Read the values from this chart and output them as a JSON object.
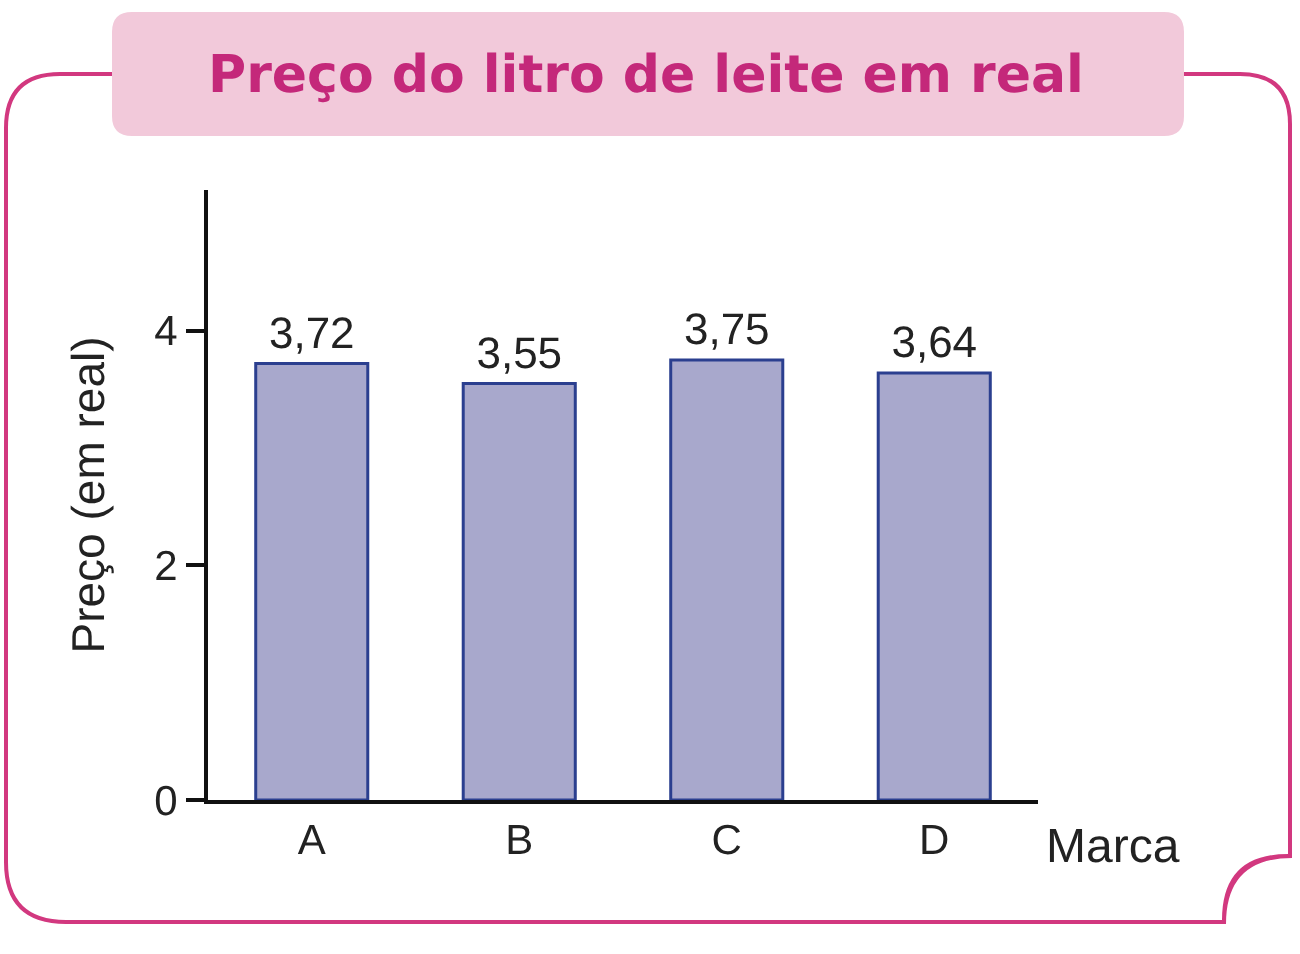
{
  "chart_data": {
    "type": "bar",
    "title": "Preço do litro de leite em real",
    "xlabel": "Marca",
    "ylabel": "Preço (em real)",
    "categories": [
      "A",
      "B",
      "C",
      "D"
    ],
    "values": [
      3.72,
      3.55,
      3.75,
      3.64
    ],
    "value_labels": [
      "3,72",
      "3,55",
      "3,75",
      "3,64"
    ],
    "color": "#a8a8cc",
    "ylim": [
      0,
      5.2
    ],
    "yticks": [
      0,
      2,
      4
    ]
  }
}
